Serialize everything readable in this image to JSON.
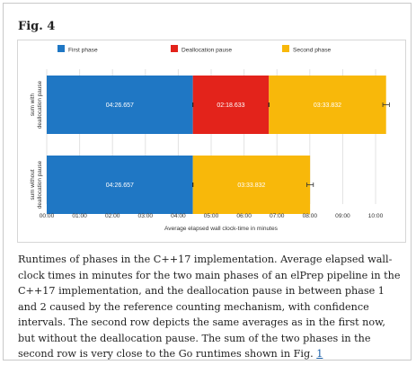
{
  "figure": {
    "label": "Fig. 4",
    "caption": "Runtimes of phases in the C++17 implementation. Average elapsed wall-clock times in minutes for the two main phases of an elPrep pipeline in the C++17 implementation, and the deallocation pause in between phase 1 and 2 caused by the reference counting mechanism, with confidence intervals. The second row depicts the same averages as in the first now, but without the deallocation pause. The sum of the two phases in the second row is very close to the Go runtimes shown in Fig. ",
    "caption_link": "1"
  },
  "chart_data": {
    "type": "bar",
    "orientation": "horizontal",
    "stacked": true,
    "categories": [
      "sum with deallocation pause",
      "sum without deallocation pause"
    ],
    "series": [
      {
        "name": "First phase",
        "color": "#1f77c4",
        "values_minutes": [
          4.444,
          4.444
        ],
        "labels": [
          "04:26.657",
          "04:26.657"
        ]
      },
      {
        "name": "Deallocation pause",
        "color": "#e3231b",
        "values_minutes": [
          2.311,
          null
        ],
        "labels": [
          "02:18.633",
          ""
        ]
      },
      {
        "name": "Second phase",
        "color": "#f8b80a",
        "values_minutes": [
          3.564,
          3.564
        ],
        "labels": [
          "03:33.832",
          "03:33.832"
        ]
      }
    ],
    "error_bars_minutes": [
      0.1,
      0.1
    ],
    "xlabel": "Average elapsed wall clock-time in minutes",
    "xlim": [
      0,
      10.6
    ],
    "xticks": [
      0,
      1,
      2,
      3,
      4,
      5,
      6,
      7,
      8,
      9,
      10
    ],
    "xtick_labels": [
      "00:00",
      "01:00",
      "02:00",
      "03:00",
      "04:00",
      "05:00",
      "06:00",
      "07:00",
      "08:00",
      "09:00",
      "10:00"
    ],
    "legend_position": "top",
    "grid": "vertical"
  }
}
